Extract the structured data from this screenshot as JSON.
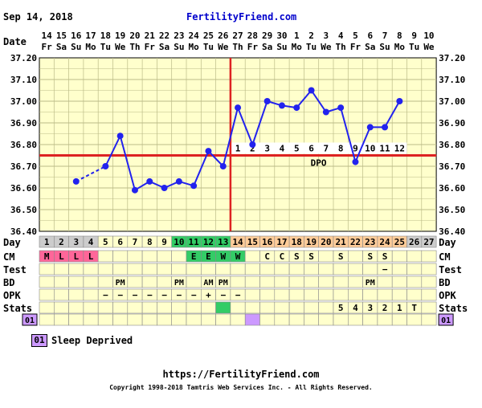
{
  "header": {
    "date": "Sep 14, 2018",
    "site": "FertilityFriend.com"
  },
  "legend": {
    "code": "01",
    "label": "Sleep Deprived"
  },
  "footer": {
    "url": "https://FertilityFriend.com",
    "copyright": "Copyright 1998-2018 Tamtris Web Services Inc. - All Rights Reserved."
  },
  "chart_data": {
    "type": "line",
    "title": "",
    "xlabel": "Date",
    "ylabel": "",
    "ylim": [
      36.4,
      37.2
    ],
    "y_ticks": [
      "37.20",
      "37.10",
      "37.00",
      "36.90",
      "36.80",
      "36.70",
      "36.60",
      "36.50",
      "36.40"
    ],
    "dates": [
      "14",
      "15",
      "16",
      "17",
      "18",
      "19",
      "20",
      "21",
      "22",
      "23",
      "24",
      "25",
      "26",
      "27",
      "28",
      "29",
      "30",
      "1",
      "2",
      "3",
      "4",
      "5",
      "6",
      "7",
      "8",
      "9",
      "10"
    ],
    "weekdays": [
      "Fr",
      "Sa",
      "Su",
      "Mo",
      "Tu",
      "We",
      "Th",
      "Fr",
      "Sa",
      "Su",
      "Mo",
      "Tu",
      "We",
      "Th",
      "Fr",
      "Sa",
      "Su",
      "Mo",
      "Tu",
      "We",
      "Th",
      "Fr",
      "Sa",
      "Su",
      "Mo",
      "Tu",
      "We"
    ],
    "cycle_days": [
      "1",
      "2",
      "3",
      "4",
      "5",
      "6",
      "7",
      "8",
      "9",
      "10",
      "11",
      "12",
      "13",
      "14",
      "15",
      "16",
      "17",
      "18",
      "19",
      "20",
      "21",
      "22",
      "23",
      "24",
      "25",
      "26",
      "27"
    ],
    "temps": [
      null,
      null,
      36.63,
      null,
      36.7,
      36.84,
      36.59,
      36.63,
      36.6,
      36.63,
      36.61,
      36.77,
      36.7,
      36.97,
      36.8,
      37.0,
      36.98,
      36.97,
      37.05,
      36.95,
      36.97,
      36.72,
      36.88,
      36.88,
      37.0,
      null,
      null
    ],
    "dashed_segments": [
      [
        2,
        4
      ]
    ],
    "coverline": 36.75,
    "ovulation_day": 13,
    "dpo_labels": [
      "1",
      "2",
      "3",
      "4",
      "5",
      "6",
      "7",
      "8",
      "9",
      "10",
      "11",
      "12"
    ],
    "dpo_text": "DPO",
    "row_labels": {
      "day": "Day",
      "cm": "CM",
      "test": "Test",
      "bd": "BD",
      "opk": "OPK",
      "stats": "Stats"
    },
    "cm": [
      "M",
      "L",
      "L",
      "L",
      "",
      "",
      "",
      "",
      "",
      "",
      "E",
      "E",
      "W",
      "W",
      "",
      "C",
      "C",
      "S",
      "S",
      "",
      "S",
      "",
      "S",
      "S",
      "",
      "",
      ""
    ],
    "test": [
      "",
      "",
      "",
      "",
      "",
      "",
      "",
      "",
      "",
      "",
      "",
      "",
      "",
      "",
      "",
      "",
      "",
      "",
      "",
      "",
      "",
      "",
      "",
      "−",
      "",
      "",
      ""
    ],
    "bd": [
      "",
      "",
      "",
      "",
      "",
      "PM",
      "",
      "",
      "",
      "PM",
      "",
      "AM",
      "PM",
      "",
      "",
      "",
      "",
      "",
      "",
      "",
      "",
      "",
      "PM",
      "",
      "",
      "",
      ""
    ],
    "opk": [
      "",
      "",
      "",
      "",
      "−",
      "−",
      "−",
      "−",
      "−",
      "−",
      "−",
      "+",
      "−",
      "−",
      "",
      "",
      "",
      "",
      "",
      "",
      "",
      "",
      "",
      "",
      "",
      "",
      ""
    ],
    "stats": [
      "",
      "",
      "",
      "",
      "",
      "",
      "",
      "",
      "",
      "",
      "",
      "",
      "",
      "",
      "",
      "",
      "",
      "",
      "",
      "",
      "5",
      "4",
      "3",
      "2",
      "1",
      "T",
      ""
    ],
    "day_colors": [
      "#cccccc",
      "#cccccc",
      "#cccccc",
      "#cccccc",
      "#ffffcc",
      "#ffffcc",
      "#ffffcc",
      "#ffffcc",
      "#ffffcc",
      "#33cc66",
      "#33cc66",
      "#33cc66",
      "#33cc66",
      "#ffcc99",
      "#ffcc99",
      "#ffcc99",
      "#ffcc99",
      "#ffcc99",
      "#ffcc99",
      "#ffcc99",
      "#ffcc99",
      "#ffcc99",
      "#ffcc99",
      "#ffcc99",
      "#ffcc99",
      "#cccccc",
      "#cccccc"
    ],
    "cm_colors": [
      "#ff6699",
      "#ff6699",
      "#ff6699",
      "#ff6699",
      "",
      "",
      "",
      "",
      "",
      "",
      "#33cc66",
      "#33cc66",
      "#33cc66",
      "#33cc66",
      "",
      "",
      "",
      "",
      "",
      "",
      "",
      "",
      "",
      "",
      "",
      "",
      ""
    ],
    "colors": {
      "grid_bg": "#ffffcc",
      "grid_line": "#bbbb88",
      "temp_line": "#2222ee",
      "coverline": "#dd2222",
      "ovulation": "#dd2222",
      "dpo_bg": "#ffffff",
      "row_bg": "#ffffcc",
      "stat_green": "#33cc66",
      "note_purple": "#cc99ff"
    },
    "stats_markers": [
      {
        "day": 13,
        "color": "#33cc66"
      }
    ],
    "notes_markers": [
      {
        "day": 15,
        "color": "#cc99ff"
      }
    ],
    "notes_label_left": "01",
    "notes_label_right": "01"
  }
}
